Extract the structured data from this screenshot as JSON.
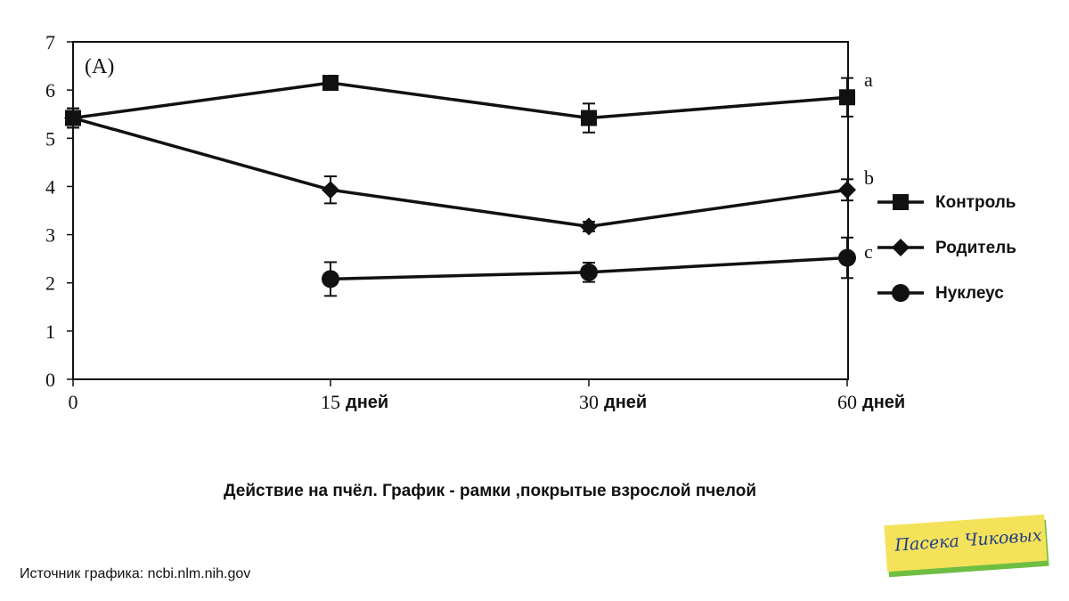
{
  "chart_data": {
    "type": "line",
    "panel_label": "(A)",
    "x_ticks": [
      "0",
      "15",
      "30",
      "60"
    ],
    "x_tick_suffix": "дней",
    "x_categories": [
      "0",
      "15",
      "30",
      "60"
    ],
    "ylim": [
      0,
      7
    ],
    "y_ticks": [
      "0",
      "1",
      "2",
      "3",
      "4",
      "5",
      "6",
      "7"
    ],
    "series": [
      {
        "name": "Контроль",
        "marker": "square",
        "letter": "a",
        "values": [
          5.42,
          6.15,
          5.42,
          5.85
        ],
        "errors": [
          0.2,
          0.1,
          0.3,
          0.4
        ]
      },
      {
        "name": "Родитель",
        "marker": "diamond",
        "letter": "b",
        "values": [
          5.42,
          3.93,
          3.17,
          3.93
        ],
        "errors": [
          0.2,
          0.28,
          0.1,
          0.22
        ]
      },
      {
        "name": "Нуклеус",
        "marker": "circle",
        "letter": "c",
        "values": [
          null,
          2.08,
          2.22,
          2.52
        ],
        "errors": [
          null,
          0.35,
          0.2,
          0.42
        ]
      }
    ]
  },
  "caption": "Действие на пчёл. График - рамки ,покрытые взрослой пчелой",
  "source": "Источник графика: ncbi.nlm.nih.gov",
  "logo_text": "Пасека Чиковых",
  "colors": {
    "line": "#111111",
    "logo_green": "#6fbe44",
    "logo_yellow": "#f4e25a",
    "logo_text": "#1f3f8a"
  }
}
